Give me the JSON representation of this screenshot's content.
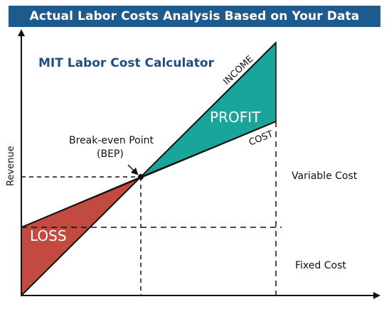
{
  "header": {
    "title": "Actual Labor Costs Analysis Based on Your Data"
  },
  "diagram": {
    "subtitle": "MIT Labor Cost Calculator",
    "y_axis_label": "Revenue",
    "labels": {
      "income": "INCOME",
      "cost": "COST",
      "profit": "PROFIT",
      "loss": "LOSS",
      "bep_line1": "Break-even Point",
      "bep_line2": "(BEP)",
      "variable_cost": "Variable Cost",
      "fixed_cost": "Fixed Cost"
    },
    "colors": {
      "banner": "#1f5a8d",
      "subtitle": "#1f4e86",
      "profit_fill": "#1aa59c",
      "loss_fill": "#c24a40",
      "lines": "#111111"
    }
  }
}
